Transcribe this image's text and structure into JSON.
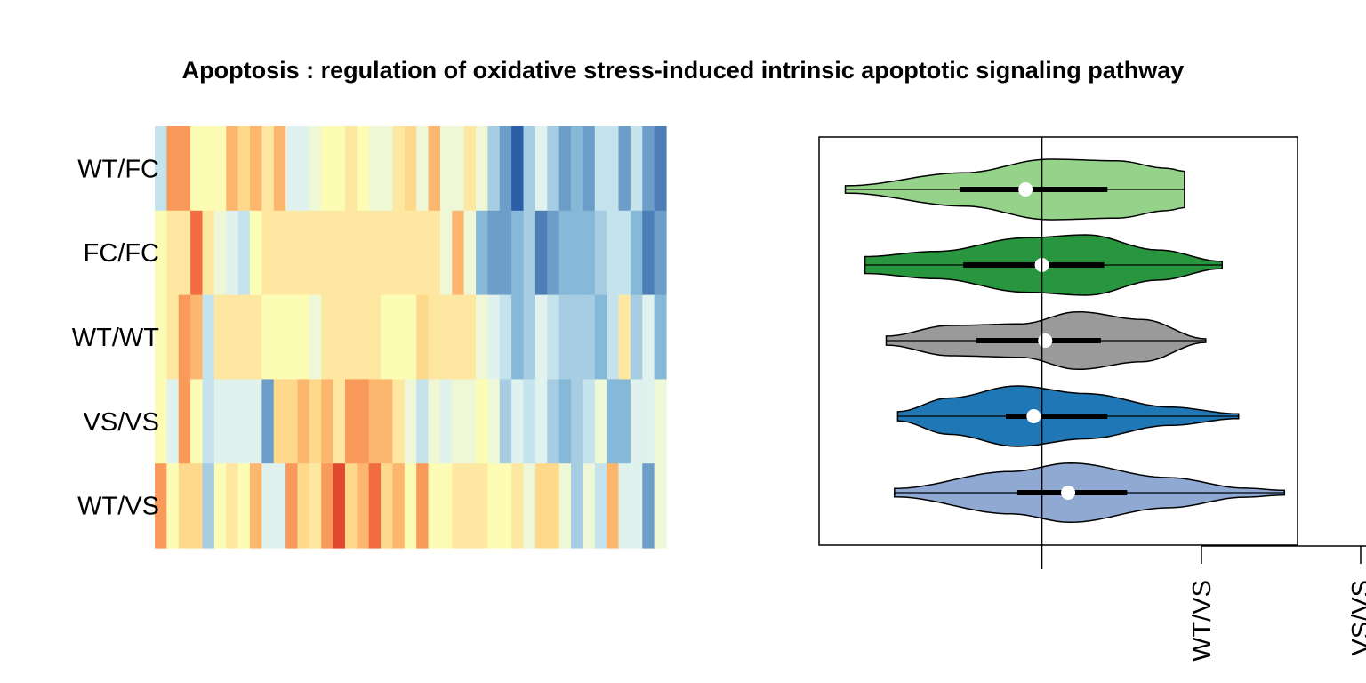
{
  "title": "Apoptosis : regulation of oxidative stress-induced intrinsic apoptotic signaling pathway",
  "colors": {
    "palette": [
      "#d7191c",
      "#e0482f",
      "#f26c42",
      "#fa9a5a",
      "#fdb66d",
      "#fed98b",
      "#fee8a1",
      "#fcfcb5",
      "#eef7d6",
      "#e0f2ed",
      "#c5e3ed",
      "#a6cde2",
      "#86b8d8",
      "#6c9ec9",
      "#4e7eb8",
      "#2c5da7"
    ],
    "violins": [
      "#96d38a",
      "#27963e",
      "#9a9a9a",
      "#1f78b5",
      "#8fa9d3"
    ]
  },
  "chart_data": [
    {
      "type": "heatmap",
      "rows": [
        "WT/FC",
        "FC/FC",
        "WT/WT",
        "VS/VS",
        "WT/VS"
      ],
      "note": "cell values are color-scale indices 0 (dark red) to 15 (dark blue)",
      "matrix": [
        [
          10,
          3,
          3,
          7,
          7,
          7,
          4,
          5,
          4,
          6,
          4,
          9,
          9,
          8,
          7,
          7,
          6,
          7,
          8,
          8,
          6,
          5,
          8,
          4,
          8,
          8,
          6,
          8,
          11,
          13,
          15,
          11,
          9,
          11,
          13,
          12,
          13,
          10,
          10,
          13,
          10,
          13,
          14
        ],
        [
          7,
          6,
          6,
          2,
          6,
          8,
          9,
          10,
          7,
          6,
          6,
          6,
          6,
          6,
          6,
          6,
          6,
          6,
          6,
          6,
          6,
          6,
          6,
          6,
          8,
          4,
          8,
          12,
          13,
          13,
          12,
          11,
          14,
          13,
          12,
          12,
          12,
          11,
          10,
          10,
          12,
          14,
          13
        ],
        [
          7,
          6,
          3,
          4,
          10,
          6,
          6,
          6,
          6,
          7,
          7,
          7,
          7,
          8,
          6,
          6,
          6,
          6,
          6,
          7,
          7,
          7,
          5,
          6,
          6,
          6,
          6,
          8,
          9,
          10,
          12,
          11,
          9,
          10,
          11,
          11,
          11,
          12,
          10,
          6,
          11,
          9,
          12
        ],
        [
          7,
          9,
          3,
          7,
          10,
          9,
          9,
          9,
          9,
          13,
          5,
          5,
          4,
          5,
          4,
          6,
          3,
          3,
          4,
          4,
          6,
          8,
          10,
          8,
          9,
          8,
          8,
          7,
          8,
          11,
          9,
          10,
          9,
          11,
          12,
          11,
          10,
          8,
          12,
          12,
          9,
          9,
          8
        ],
        [
          3,
          7,
          5,
          5,
          11,
          7,
          6,
          7,
          4,
          9,
          9,
          3,
          5,
          6,
          3,
          1,
          5,
          4,
          2,
          5,
          4,
          7,
          3,
          7,
          7,
          6,
          6,
          6,
          7,
          7,
          6,
          8,
          5,
          5,
          8,
          11,
          8,
          10,
          4,
          9,
          9,
          13,
          8
        ]
      ]
    },
    {
      "type": "violin",
      "groups": [
        "WT/FC",
        "FC/FC",
        "WT/WT",
        "VS/VS",
        "WT/VS"
      ],
      "reference_line": 0,
      "xlim": [
        -1.36,
        1.56
      ],
      "series": [
        {
          "min": -1.2,
          "q1": -0.5,
          "median": -0.1,
          "q3": 0.4,
          "max": 0.87
        },
        {
          "min": -1.08,
          "q1": -0.48,
          "median": 0.0,
          "q3": 0.38,
          "max": 1.1
        },
        {
          "min": -0.95,
          "q1": -0.4,
          "median": 0.02,
          "q3": 0.36,
          "max": 1.0
        },
        {
          "min": -0.88,
          "q1": -0.22,
          "median": -0.05,
          "q3": 0.4,
          "max": 1.2
        },
        {
          "min": -0.9,
          "q1": -0.15,
          "median": 0.16,
          "q3": 0.52,
          "max": 1.48
        }
      ],
      "extra_axis_ticks": [
        "WT/VS",
        "VS/VS"
      ]
    }
  ]
}
